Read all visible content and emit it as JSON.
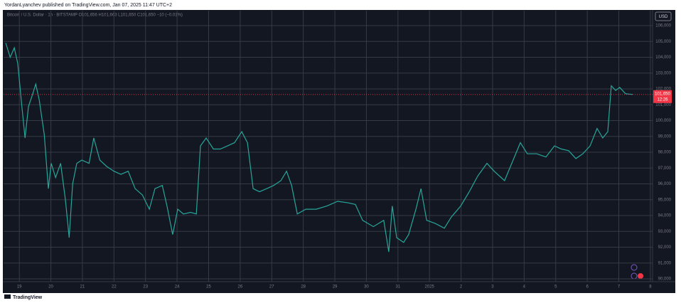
{
  "header": "YordanLyanchev published on TradingView.com, Jan 07, 2025 11:47 UTC+2",
  "footer": "TradingView",
  "chart_data": {
    "type": "line",
    "legend_text": "Bitcoin / U.S. Dollar · 1h · BITSTAMP O101,656 H101,663 L101,650 C101,650 −10 (−0.01%)",
    "currency": "USD",
    "last_price": {
      "value": 101650,
      "label": "101,650"
    },
    "countdown": "12:26",
    "color": "#26a69a",
    "grid": true,
    "xlim": [
      -0.5,
      20.07
    ],
    "ylim": [
      89820,
      106944
    ],
    "xticks": [
      {
        "value": 0,
        "label": "19"
      },
      {
        "value": 1,
        "label": "20"
      },
      {
        "value": 2,
        "label": "21"
      },
      {
        "value": 3,
        "label": "22"
      },
      {
        "value": 4,
        "label": "23"
      },
      {
        "value": 5,
        "label": "24"
      },
      {
        "value": 6,
        "label": "25"
      },
      {
        "value": 7,
        "label": "26"
      },
      {
        "value": 8,
        "label": "27"
      },
      {
        "value": 9,
        "label": "28"
      },
      {
        "value": 10,
        "label": "29"
      },
      {
        "value": 11,
        "label": "30"
      },
      {
        "value": 12,
        "label": "31"
      },
      {
        "value": 13,
        "label": "2025"
      },
      {
        "value": 14,
        "label": "2"
      },
      {
        "value": 15,
        "label": "3"
      },
      {
        "value": 16,
        "label": "4"
      },
      {
        "value": 17,
        "label": "5"
      },
      {
        "value": 18,
        "label": "6"
      },
      {
        "value": 19,
        "label": "7"
      },
      {
        "value": 20,
        "label": "8"
      }
    ],
    "yticks": [
      {
        "value": 90000,
        "label": "90,000"
      },
      {
        "value": 91000,
        "label": "91,000"
      },
      {
        "value": 92000,
        "label": "92,000"
      },
      {
        "value": 93000,
        "label": "93,000"
      },
      {
        "value": 94000,
        "label": "94,000"
      },
      {
        "value": 95000,
        "label": "95,000"
      },
      {
        "value": 96000,
        "label": "96,000"
      },
      {
        "value": 97000,
        "label": "97,000"
      },
      {
        "value": 98000,
        "label": "98,000"
      },
      {
        "value": 99000,
        "label": "99,000"
      },
      {
        "value": 100000,
        "label": "100,000"
      },
      {
        "value": 101000,
        "label": "101,000"
      },
      {
        "value": 102000,
        "label": "102,000"
      },
      {
        "value": 103000,
        "label": "103,000"
      },
      {
        "value": 104000,
        "label": "104,000"
      },
      {
        "value": 105000,
        "label": "105,000"
      },
      {
        "value": 106000,
        "label": "106,000"
      }
    ],
    "x": [
      -0.43,
      -0.29,
      -0.16,
      -0.05,
      0.07,
      0.18,
      0.29,
      0.41,
      0.52,
      0.63,
      0.79,
      0.92,
      1.01,
      1.15,
      1.31,
      1.46,
      1.58,
      1.69,
      1.82,
      1.98,
      2.21,
      2.36,
      2.55,
      2.77,
      3.0,
      3.22,
      3.45,
      3.67,
      3.9,
      4.12,
      4.3,
      4.53,
      4.68,
      4.86,
      5.02,
      5.2,
      5.43,
      5.61,
      5.74,
      5.92,
      6.15,
      6.37,
      6.6,
      6.82,
      7.05,
      7.23,
      7.41,
      7.61,
      7.84,
      8.06,
      8.29,
      8.47,
      8.63,
      8.81,
      9.08,
      9.41,
      9.75,
      10.09,
      10.43,
      10.65,
      10.88,
      11.22,
      11.55,
      11.71,
      11.82,
      11.96,
      12.18,
      12.34,
      12.57,
      12.73,
      12.91,
      13.18,
      13.47,
      13.69,
      13.99,
      14.26,
      14.53,
      14.82,
      15.05,
      15.38,
      15.65,
      15.88,
      16.1,
      16.4,
      16.69,
      16.96,
      17.18,
      17.41,
      17.64,
      17.86,
      18.09,
      18.31,
      18.49,
      18.65,
      18.76,
      18.9,
      19.03,
      19.21,
      19.44
    ],
    "values": [
      104900,
      104000,
      104600,
      103600,
      101100,
      98900,
      100900,
      101600,
      102300,
      101300,
      99100,
      95700,
      97300,
      96400,
      97300,
      95000,
      92600,
      96000,
      97300,
      97500,
      97300,
      98900,
      97500,
      97100,
      96800,
      96600,
      96800,
      95700,
      95300,
      94400,
      95700,
      95900,
      94600,
      92800,
      94400,
      94100,
      94200,
      94100,
      98400,
      98900,
      98200,
      98200,
      98400,
      98600,
      99300,
      98600,
      95700,
      95500,
      95700,
      95900,
      96200,
      96800,
      95900,
      94100,
      94400,
      94400,
      94600,
      94900,
      94800,
      94700,
      93700,
      93300,
      93700,
      91700,
      94600,
      92600,
      92300,
      92800,
      94400,
      95700,
      93700,
      93500,
      93200,
      93900,
      94600,
      95500,
      96500,
      97300,
      96800,
      96200,
      97500,
      98600,
      97900,
      97900,
      97700,
      98400,
      98200,
      98100,
      97600,
      97900,
      98400,
      99500,
      98900,
      99300,
      102200,
      101900,
      102100,
      101700,
      101650
    ]
  }
}
